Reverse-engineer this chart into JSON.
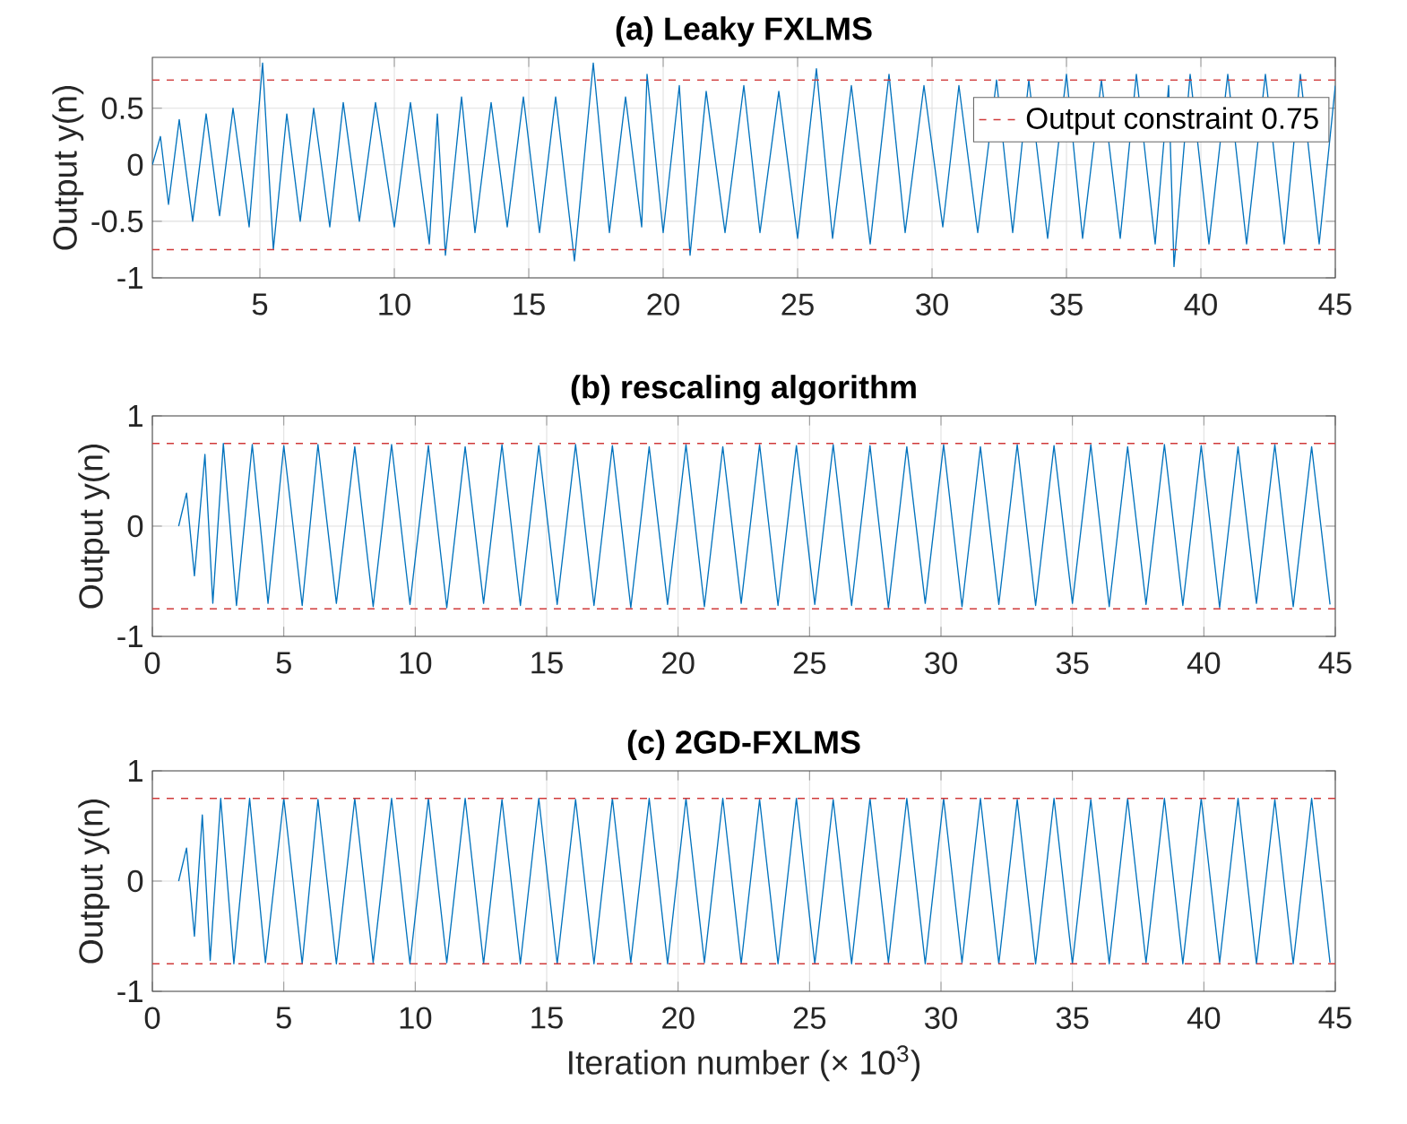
{
  "chart_data": [
    {
      "type": "line",
      "title": "(a) Leaky FXLMS",
      "ylabel": "Output y(n)",
      "xlim": [
        1,
        45
      ],
      "ylim": [
        -1,
        0.95
      ],
      "xticks": [
        5,
        10,
        15,
        20,
        25,
        30,
        35,
        40,
        45
      ],
      "yticks": [
        -1,
        -0.5,
        0,
        0.5
      ],
      "grid": true,
      "legend": "top right",
      "ref_lines": [
        {
          "axis": "y",
          "value": 0.75,
          "label": "Output constraint 0.75",
          "color": "#d03a3a",
          "line_style": "dashed"
        },
        {
          "axis": "y",
          "value": -0.75,
          "color": "#d03a3a",
          "line_style": "dashed"
        }
      ],
      "series": [
        {
          "color": "#0072bd",
          "x": [
            1.0,
            1.3,
            1.6,
            2.0,
            2.5,
            3.0,
            3.5,
            4.0,
            4.6,
            5.1,
            5.5,
            6.0,
            6.5,
            7.0,
            7.6,
            8.1,
            8.7,
            9.3,
            10.0,
            10.6,
            11.3,
            11.6,
            11.9,
            12.5,
            13.0,
            13.6,
            14.2,
            14.8,
            15.4,
            16.0,
            16.7,
            17.4,
            18.0,
            18.6,
            19.2,
            19.4,
            20.0,
            20.6,
            21.0,
            21.6,
            22.3,
            23.0,
            23.6,
            24.3,
            25.0,
            25.7,
            26.3,
            27.0,
            27.7,
            28.4,
            29.0,
            29.7,
            30.4,
            31.0,
            31.7,
            32.4,
            33.0,
            33.6,
            34.3,
            35.0,
            35.6,
            36.3,
            37.0,
            37.6,
            38.3,
            38.8,
            39.0,
            39.6,
            40.3,
            41.0,
            41.7,
            42.4,
            43.1,
            43.7,
            44.4,
            45.0
          ],
          "values": [
            0,
            0.25,
            -0.35,
            0.4,
            -0.5,
            0.45,
            -0.45,
            0.5,
            -0.55,
            0.9,
            -0.75,
            0.45,
            -0.5,
            0.5,
            -0.55,
            0.55,
            -0.5,
            0.55,
            -0.55,
            0.55,
            -0.7,
            0.45,
            -0.8,
            0.6,
            -0.6,
            0.55,
            -0.55,
            0.6,
            -0.6,
            0.6,
            -0.85,
            0.9,
            -0.6,
            0.6,
            -0.55,
            0.8,
            -0.6,
            0.7,
            -0.8,
            0.65,
            -0.6,
            0.7,
            -0.6,
            0.65,
            -0.65,
            0.85,
            -0.65,
            0.7,
            -0.7,
            0.8,
            -0.6,
            0.7,
            -0.55,
            0.7,
            -0.6,
            0.75,
            -0.6,
            0.75,
            -0.65,
            0.8,
            -0.65,
            0.75,
            -0.65,
            0.8,
            -0.7,
            0.7,
            -0.9,
            0.8,
            -0.7,
            0.8,
            -0.7,
            0.8,
            -0.7,
            0.8,
            -0.7,
            0.7
          ]
        }
      ]
    },
    {
      "type": "line",
      "title": "(b) rescaling algorithm",
      "ylabel": "Output y(n)",
      "xlim": [
        0,
        45
      ],
      "ylim": [
        -1,
        1
      ],
      "xticks": [
        0,
        5,
        10,
        15,
        20,
        25,
        30,
        35,
        40,
        45
      ],
      "yticks": [
        -1,
        0,
        1
      ],
      "grid": true,
      "ref_lines": [
        {
          "axis": "y",
          "value": 0.75,
          "color": "#d03a3a",
          "line_style": "dashed"
        },
        {
          "axis": "y",
          "value": -0.75,
          "color": "#d03a3a",
          "line_style": "dashed"
        }
      ],
      "series": [
        {
          "color": "#0072bd",
          "x": [
            1.0,
            1.3,
            1.6,
            2.0,
            2.3,
            2.7,
            3.2,
            3.8,
            4.4,
            5.0,
            5.7,
            6.3,
            7.0,
            7.7,
            8.4,
            9.1,
            9.8,
            10.5,
            11.2,
            11.9,
            12.6,
            13.3,
            14.0,
            14.7,
            15.4,
            16.1,
            16.8,
            17.5,
            18.2,
            18.9,
            19.6,
            20.3,
            21.0,
            21.7,
            22.4,
            23.1,
            23.8,
            24.5,
            25.2,
            25.9,
            26.6,
            27.3,
            28.0,
            28.7,
            29.4,
            30.1,
            30.8,
            31.5,
            32.2,
            32.9,
            33.6,
            34.3,
            35.0,
            35.7,
            36.4,
            37.1,
            37.8,
            38.5,
            39.2,
            39.9,
            40.6,
            41.3,
            42.0,
            42.7,
            43.4,
            44.1,
            44.8
          ],
          "values": [
            0,
            0.3,
            -0.45,
            0.65,
            -0.7,
            0.75,
            -0.72,
            0.74,
            -0.7,
            0.73,
            -0.72,
            0.74,
            -0.7,
            0.72,
            -0.73,
            0.74,
            -0.71,
            0.73,
            -0.74,
            0.72,
            -0.7,
            0.74,
            -0.72,
            0.73,
            -0.71,
            0.74,
            -0.72,
            0.73,
            -0.74,
            0.72,
            -0.71,
            0.74,
            -0.73,
            0.72,
            -0.7,
            0.74,
            -0.72,
            0.73,
            -0.71,
            0.74,
            -0.72,
            0.73,
            -0.74,
            0.72,
            -0.7,
            0.74,
            -0.73,
            0.72,
            -0.71,
            0.74,
            -0.72,
            0.73,
            -0.7,
            0.74,
            -0.73,
            0.72,
            -0.71,
            0.74,
            -0.72,
            0.73,
            -0.74,
            0.72,
            -0.7,
            0.74,
            -0.73,
            0.72,
            -0.71
          ]
        }
      ]
    },
    {
      "type": "line",
      "title": "(c) 2GD-FXLMS",
      "xlabel": "Iteration number (× 10$^{3}$)",
      "ylabel": "Output y(n)",
      "xlim": [
        0,
        45
      ],
      "ylim": [
        -1,
        1
      ],
      "xticks": [
        0,
        5,
        10,
        15,
        20,
        25,
        30,
        35,
        40,
        45
      ],
      "yticks": [
        -1,
        0,
        1
      ],
      "grid": true,
      "ref_lines": [
        {
          "axis": "y",
          "value": 0.75,
          "color": "#d03a3a",
          "line_style": "dashed"
        },
        {
          "axis": "y",
          "value": -0.75,
          "color": "#d03a3a",
          "line_style": "dashed"
        }
      ],
      "series": [
        {
          "color": "#0072bd",
          "x": [
            1.0,
            1.3,
            1.6,
            1.9,
            2.2,
            2.6,
            3.1,
            3.7,
            4.3,
            5.0,
            5.7,
            6.3,
            7.0,
            7.7,
            8.4,
            9.1,
            9.8,
            10.5,
            11.2,
            11.9,
            12.6,
            13.3,
            14.0,
            14.7,
            15.4,
            16.1,
            16.8,
            17.5,
            18.2,
            18.9,
            19.6,
            20.3,
            21.0,
            21.7,
            22.4,
            23.1,
            23.8,
            24.5,
            25.2,
            25.9,
            26.6,
            27.3,
            28.0,
            28.7,
            29.4,
            30.1,
            30.8,
            31.5,
            32.2,
            32.9,
            33.6,
            34.3,
            35.0,
            35.7,
            36.4,
            37.1,
            37.8,
            38.5,
            39.2,
            39.9,
            40.6,
            41.3,
            42.0,
            42.7,
            43.4,
            44.1,
            44.8
          ],
          "values": [
            0,
            0.3,
            -0.5,
            0.6,
            -0.72,
            0.75,
            -0.75,
            0.75,
            -0.74,
            0.75,
            -0.75,
            0.74,
            -0.75,
            0.75,
            -0.74,
            0.75,
            -0.75,
            0.75,
            -0.74,
            0.75,
            -0.75,
            0.74,
            -0.75,
            0.75,
            -0.75,
            0.74,
            -0.75,
            0.75,
            -0.74,
            0.75,
            -0.75,
            0.75,
            -0.74,
            0.75,
            -0.75,
            0.74,
            -0.75,
            0.75,
            -0.75,
            0.74,
            -0.75,
            0.75,
            -0.74,
            0.75,
            -0.75,
            0.75,
            -0.74,
            0.75,
            -0.75,
            0.74,
            -0.75,
            0.75,
            -0.75,
            0.74,
            -0.75,
            0.75,
            -0.74,
            0.75,
            -0.75,
            0.75,
            -0.74,
            0.75,
            -0.75,
            0.74,
            -0.75,
            0.75,
            -0.74
          ]
        }
      ]
    }
  ]
}
